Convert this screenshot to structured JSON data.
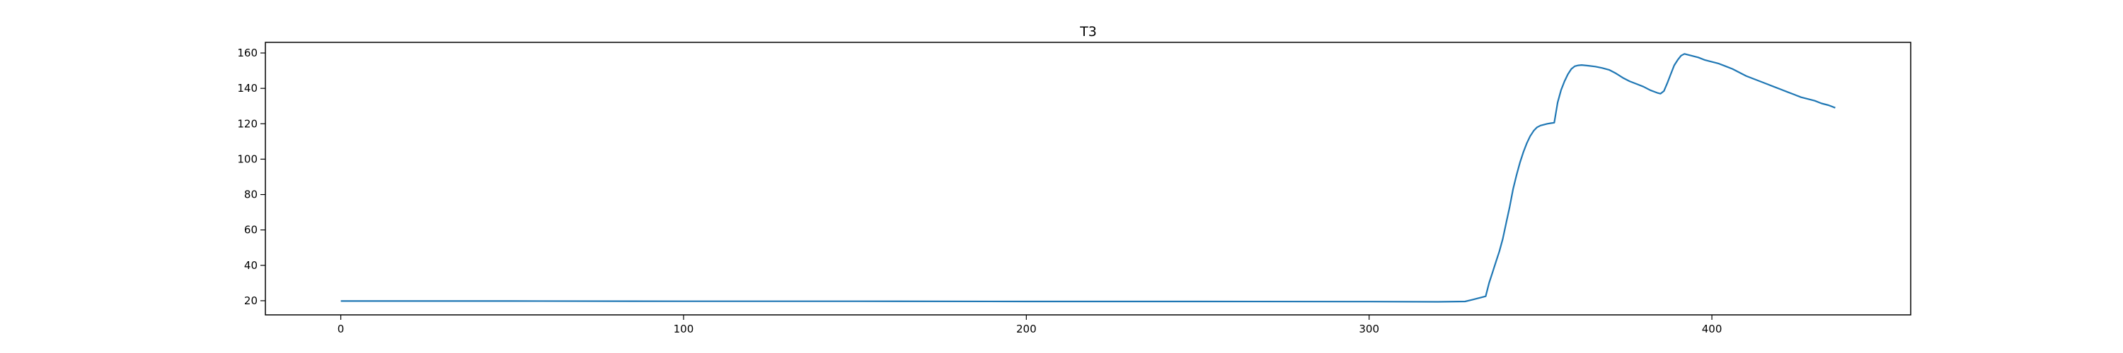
{
  "chart_data": {
    "type": "line",
    "title": "T3",
    "xlabel": "",
    "ylabel": "",
    "xlim": [
      -22,
      458
    ],
    "ylim": [
      12,
      166
    ],
    "x_ticks": [
      0,
      100,
      200,
      300,
      400
    ],
    "y_ticks": [
      20,
      40,
      60,
      80,
      100,
      120,
      140,
      160
    ],
    "x_tick_labels": [
      "0",
      "100",
      "200",
      "300",
      "400"
    ],
    "y_tick_labels": [
      "20",
      "40",
      "60",
      "80",
      "100",
      "120",
      "140",
      "160"
    ],
    "grid": false,
    "legend": "none",
    "line_color": "#1f77b4",
    "series": [
      {
        "x": [
          0,
          50,
          100,
          150,
          200,
          250,
          300,
          320,
          328,
          330,
          332,
          334,
          335,
          336,
          337,
          338,
          339,
          340,
          341,
          342,
          343,
          344,
          345,
          346,
          347,
          348,
          349,
          350,
          351,
          352,
          353,
          354,
          355,
          356,
          357,
          358,
          359,
          360,
          361,
          362,
          364,
          366,
          368,
          370,
          372,
          374,
          376,
          378,
          380,
          382,
          384,
          385,
          386,
          387,
          388,
          389,
          390,
          391,
          392,
          394,
          396,
          398,
          400,
          402,
          404,
          406,
          408,
          410,
          412,
          414,
          416,
          418,
          420,
          422,
          424,
          426,
          428,
          430,
          432,
          434,
          436
        ],
        "y": [
          19.8,
          19.8,
          19.7,
          19.7,
          19.6,
          19.6,
          19.5,
          19.4,
          19.6,
          20.5,
          21.5,
          22.5,
          30,
          36,
          42,
          48,
          55,
          64,
          73,
          83,
          91,
          98,
          104,
          109,
          113,
          116,
          118,
          119,
          119.5,
          120,
          120.3,
          120.6,
          132,
          139,
          144,
          148,
          151,
          152.5,
          153,
          153.2,
          152.8,
          152.3,
          151.5,
          150.5,
          148.5,
          146,
          144,
          142.5,
          141,
          139,
          137.5,
          137,
          138.5,
          143,
          148,
          153,
          156,
          158.5,
          159.5,
          158.5,
          157.5,
          156,
          155,
          154,
          152.5,
          151,
          149,
          147,
          145.5,
          144,
          142.5,
          141,
          139.5,
          138,
          136.5,
          135,
          134,
          133,
          131.5,
          130.5,
          129
        ]
      }
    ]
  }
}
